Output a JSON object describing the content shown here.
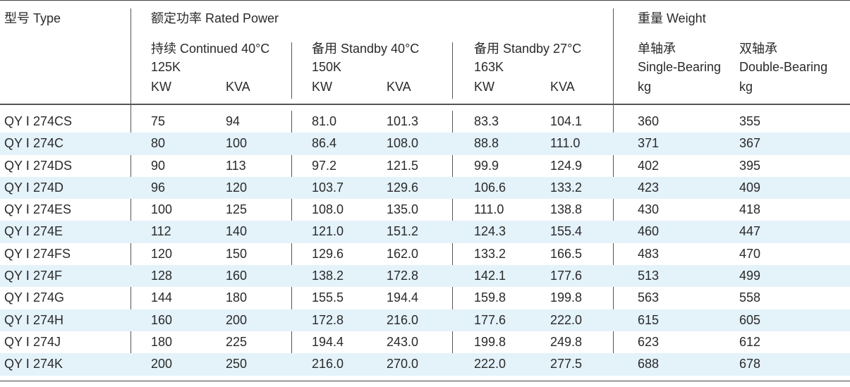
{
  "header": {
    "type_label": "型号 Type",
    "rated_power_label": "额定功率 Rated Power",
    "weight_label": "重量 Weight",
    "groups": [
      {
        "title": "持续 Continued 40°C",
        "sub": "125K",
        "col1": "KW",
        "col2": "KVA"
      },
      {
        "title": "备用 Standby 40°C",
        "sub": "150K",
        "col1": "KW",
        "col2": "KVA"
      },
      {
        "title": "备用 Standby 27°C",
        "sub": "163K",
        "col1": "KW",
        "col2": "KVA"
      }
    ],
    "single_bearing": {
      "cn": "单轴承",
      "en": "Single-Bearing",
      "unit": "kg"
    },
    "double_bearing": {
      "cn": "双轴承",
      "en": "Double-Bearing",
      "unit": "kg"
    }
  },
  "rows": [
    [
      "QY Ⅰ 274CS",
      "75",
      "94",
      "81.0",
      "101.3",
      "83.3",
      "104.1",
      "360",
      "355"
    ],
    [
      "QY Ⅰ 274C",
      "80",
      "100",
      "86.4",
      "108.0",
      "88.8",
      "111.0",
      "371",
      "367"
    ],
    [
      "QY Ⅰ 274DS",
      "90",
      "113",
      "97.2",
      "121.5",
      "99.9",
      "124.9",
      "402",
      "395"
    ],
    [
      "QY Ⅰ 274D",
      "96",
      "120",
      "103.7",
      "129.6",
      "106.6",
      "133.2",
      "423",
      "409"
    ],
    [
      "QY Ⅰ 274ES",
      "100",
      "125",
      "108.0",
      "135.0",
      "111.0",
      "138.8",
      "430",
      "418"
    ],
    [
      "QY Ⅰ 274E",
      "112",
      "140",
      "121.0",
      "151.2",
      "124.3",
      "155.4",
      "460",
      "447"
    ],
    [
      "QY Ⅰ 274FS",
      "120",
      "150",
      "129.6",
      "162.0",
      "133.2",
      "166.5",
      "483",
      "470"
    ],
    [
      "QY Ⅰ 274F",
      "128",
      "160",
      "138.2",
      "172.8",
      "142.1",
      "177.6",
      "513",
      "499"
    ],
    [
      "QY Ⅰ 274G",
      "144",
      "180",
      "155.5",
      "194.4",
      "159.8",
      "199.8",
      "563",
      "558"
    ],
    [
      "QY Ⅰ 274H",
      "160",
      "200",
      "172.8",
      "216.0",
      "177.6",
      "222.0",
      "615",
      "605"
    ],
    [
      "QY Ⅰ 274J",
      "180",
      "225",
      "194.4",
      "243.0",
      "199.8",
      "249.8",
      "623",
      "612"
    ],
    [
      "QY Ⅰ 274K",
      "200",
      "250",
      "216.0",
      "270.0",
      "222.0",
      "277.5",
      "688",
      "678"
    ]
  ]
}
